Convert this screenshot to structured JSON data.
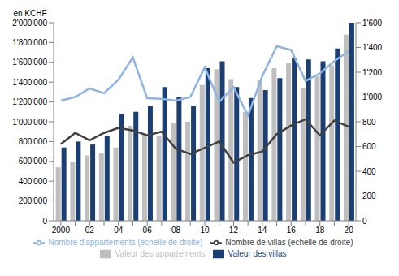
{
  "chart_data": {
    "type": "bar",
    "y_label": "en KCHF",
    "categories": [
      "2000",
      null,
      "02",
      null,
      "04",
      null,
      "06",
      null,
      "08",
      null,
      "10",
      null,
      "12",
      null,
      "14",
      null,
      "16",
      null,
      "18",
      null,
      "20"
    ],
    "series": [
      {
        "name": "Valeur des appartements",
        "type": "bar",
        "color": "#BFBFBF",
        "values": [
          540000,
          590000,
          660000,
          680000,
          740000,
          960000,
          870000,
          860000,
          990000,
          1000000,
          1370000,
          1530000,
          1430000,
          1100000,
          1420000,
          1540000,
          1590000,
          1340000,
          1460000,
          1570000,
          1880000
        ]
      },
      {
        "name": "Valeur des villas",
        "type": "bar",
        "color": "#1B3F73",
        "values": [
          740000,
          800000,
          770000,
          860000,
          1080000,
          1100000,
          1160000,
          1350000,
          1250000,
          1160000,
          1540000,
          1610000,
          1350000,
          1240000,
          1320000,
          1440000,
          1640000,
          1630000,
          1610000,
          1740000,
          2000000
        ]
      },
      {
        "name": "Nombre d'appartements (échelle de droite)",
        "type": "line",
        "axis": "y2",
        "color": "#8EB4E3",
        "values": [
          970,
          1000,
          1070,
          1030,
          1140,
          1320,
          990,
          985,
          970,
          1000,
          1240,
          960,
          1080,
          850,
          1170,
          1410,
          1380,
          1130,
          1190,
          1290,
          1370
        ]
      },
      {
        "name": "Nombre de villas (échelle de droite)",
        "type": "line",
        "axis": "y2",
        "color": "#404040",
        "values": [
          620,
          710,
          650,
          710,
          750,
          730,
          690,
          720,
          580,
          540,
          590,
          640,
          470,
          530,
          560,
          700,
          770,
          820,
          690,
          810,
          760
        ]
      }
    ],
    "ylim": [
      0,
      2000000
    ],
    "yticks": [
      0,
      {
        "value": 200000,
        "label": "200'000"
      },
      {
        "value": 400000,
        "label": "400'000"
      },
      {
        "value": 600000,
        "label": "600'000"
      },
      {
        "value": 800000,
        "label": "800'000"
      },
      {
        "value": 1000000,
        "label": "1'000'000"
      },
      {
        "value": 1200000,
        "label": "1'200'000"
      },
      {
        "value": 1400000,
        "label": "1'400'000"
      },
      {
        "value": 1600000,
        "label": "1'600'000"
      },
      {
        "value": 1800000,
        "label": "1'800'000"
      },
      {
        "value": 2000000,
        "label": "2'000'000"
      }
    ],
    "y2lim": [
      0,
      1600
    ],
    "y2ticks": [
      0,
      200,
      400,
      600,
      800,
      {
        "value": 1000,
        "label": "1'000"
      },
      {
        "value": 1200,
        "label": "1'200"
      },
      {
        "value": 1400,
        "label": "1'400"
      },
      {
        "value": 1600,
        "label": "1'600"
      }
    ],
    "grid": false
  }
}
